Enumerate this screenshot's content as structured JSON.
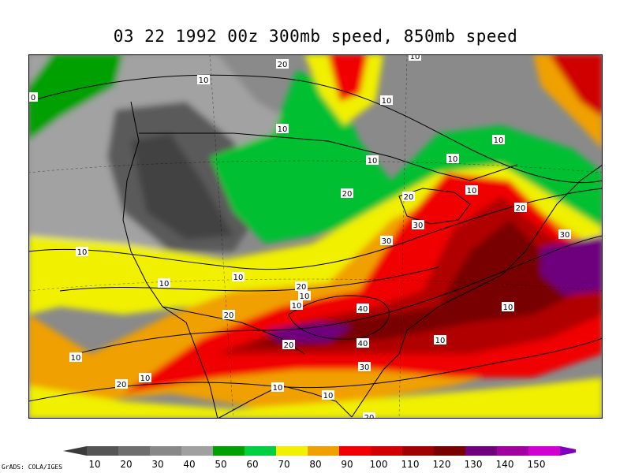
{
  "title": "03 22 1992 00z 300mb speed, 850mb speed",
  "credit": "GrADS: COLA/IGES",
  "colorbar": {
    "colors": [
      "#555555",
      "#6e6e6e",
      "#888888",
      "#a0a0a0",
      "#00a000",
      "#00d040",
      "#f0f000",
      "#f0a000",
      "#f00000",
      "#d00000",
      "#a00000",
      "#780000",
      "#6e007d",
      "#a000a0",
      "#d000d0",
      "#8000c0"
    ],
    "left_arrow_color": "#3a3a3a",
    "labels": [
      "10",
      "20",
      "30",
      "40",
      "50",
      "60",
      "70",
      "80",
      "90",
      "100",
      "110",
      "120",
      "130",
      "140",
      "150"
    ]
  },
  "contour_labels": [
    "10",
    "20",
    "10",
    "10",
    "10",
    "10",
    "10",
    "10",
    "10",
    "20",
    "20",
    "30",
    "10",
    "20",
    "30",
    "30",
    "10",
    "10",
    "20",
    "10",
    "20",
    "40",
    "20",
    "40",
    "10",
    "10",
    "30",
    "10",
    "10",
    "20",
    "10",
    "10",
    "10",
    "20",
    "0"
  ]
}
